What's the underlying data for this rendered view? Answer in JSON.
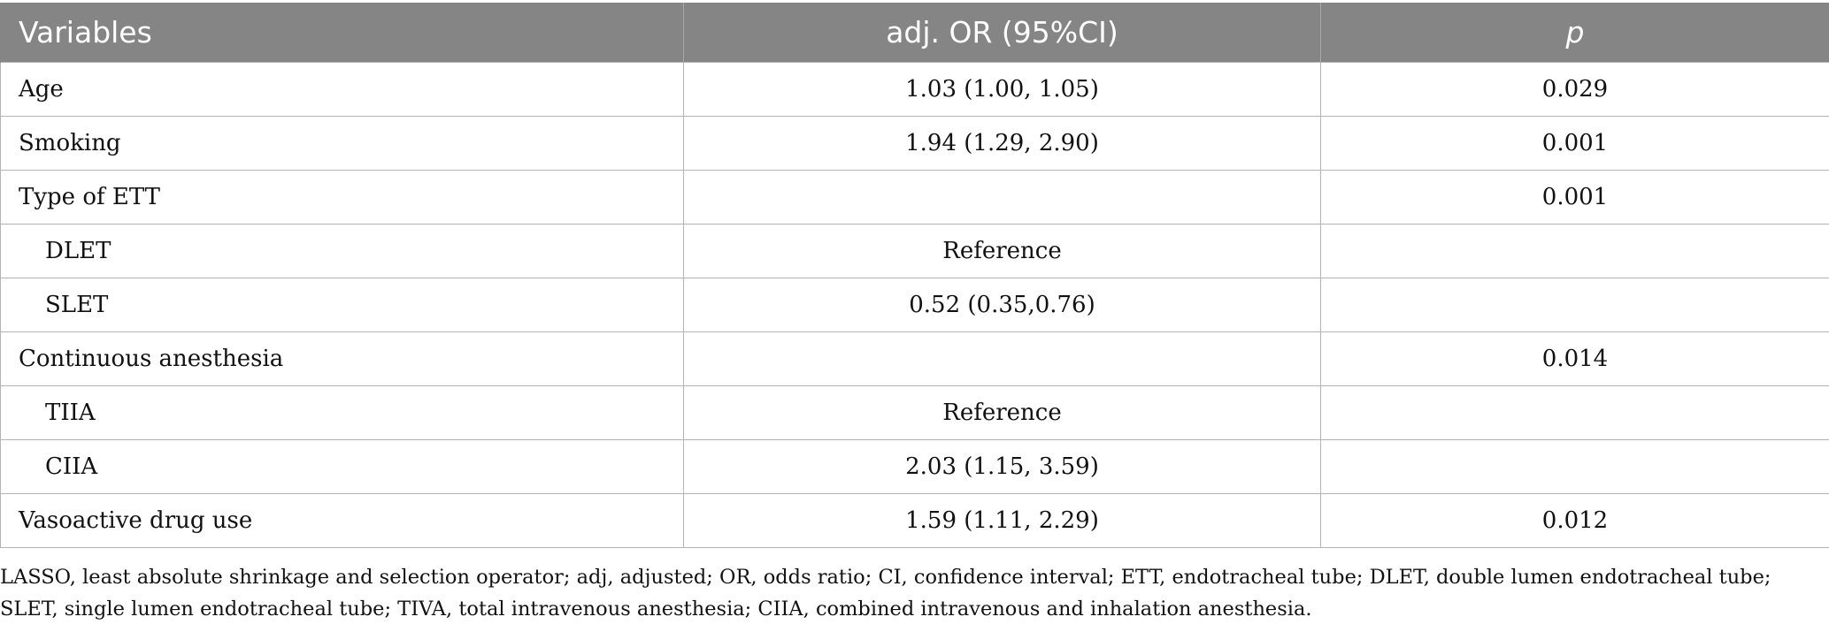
{
  "table": {
    "headers": [
      "Variables",
      "adj. OR (95%CI)",
      "p"
    ],
    "rows": [
      {
        "variable": "Age",
        "or": "1.03 (1.00, 1.05)",
        "p": "0.029",
        "indent": false
      },
      {
        "variable": "Smoking",
        "or": "1.94 (1.29, 2.90)",
        "p": "0.001",
        "indent": false
      },
      {
        "variable": "Type of ETT",
        "or": "",
        "p": "0.001",
        "indent": false
      },
      {
        "variable": "DLET",
        "or": "Reference",
        "p": "",
        "indent": true
      },
      {
        "variable": "SLET",
        "or": "0.52 (0.35,0.76)",
        "p": "",
        "indent": true
      },
      {
        "variable": "Continuous anesthesia",
        "or": "",
        "p": "0.014",
        "indent": false
      },
      {
        "variable": "TIIA",
        "or": "Reference",
        "p": "",
        "indent": true
      },
      {
        "variable": "CIIA",
        "or": "2.03 (1.15, 3.59)",
        "p": "",
        "indent": true
      },
      {
        "variable": "Vasoactive drug use",
        "or": "1.59 (1.11, 2.29)",
        "p": "0.012",
        "indent": false
      }
    ]
  },
  "footnote": "LASSO, least absolute shrinkage and selection operator; adj, adjusted; OR, odds ratio; CI, confidence interval; ETT, endotracheal tube; DLET, double lumen endotracheal tube; SLET, single lumen endotracheal tube; TIVA, total intravenous anesthesia; CIIA, combined intravenous and inhalation anesthesia.",
  "colors": {
    "header_bg": "#858585",
    "header_text": "#ffffff",
    "grid": "#b4b4b4"
  }
}
